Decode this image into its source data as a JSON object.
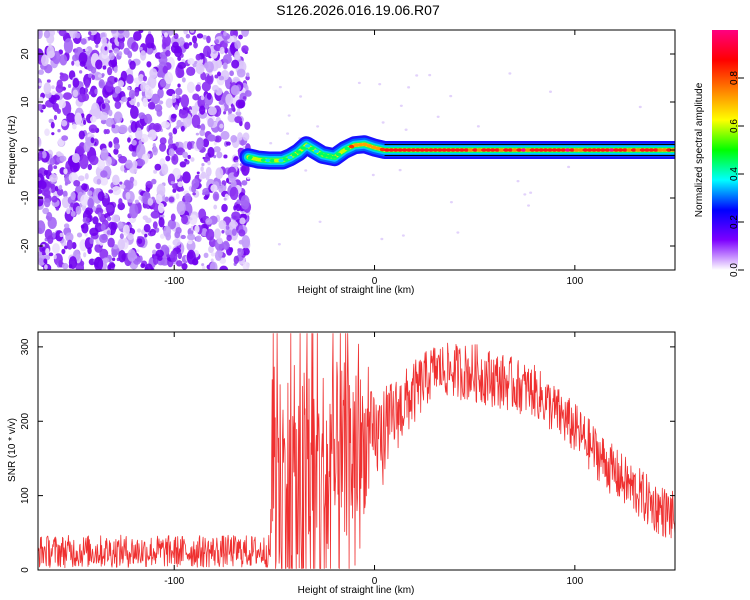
{
  "title": "S126.2026.016.19.06.R07",
  "chart_data": [
    {
      "type": "heatmap",
      "xlabel": "Height of straight line (km)",
      "ylabel": "Frequency (Hz)",
      "xlim": [
        -168,
        150
      ],
      "ylim": [
        -25,
        25
      ],
      "x_ticks": [
        -100,
        0,
        100
      ],
      "y_ticks": [
        -20,
        -10,
        0,
        10,
        20
      ],
      "colorbar": {
        "label": "Normalized spectral amplitude",
        "range": [
          0,
          1
        ],
        "ticks": [
          "0.0",
          "0.2",
          "0.4",
          "0.6",
          "0.8"
        ],
        "colors": [
          "#ffffff",
          "#7d00ff",
          "#0000ff",
          "#00ffff",
          "#00ff00",
          "#ffff00",
          "#ff8000",
          "#ff0000",
          "#ff0080"
        ]
      },
      "noise_region_x": [
        -168,
        -63
      ],
      "trace_center_hz": [
        [
          -63,
          -1.5
        ],
        [
          -58,
          -2
        ],
        [
          -52,
          -2.2
        ],
        [
          -46,
          -2.2
        ],
        [
          -42,
          -1.5
        ],
        [
          -38,
          -0.5
        ],
        [
          -34,
          1
        ],
        [
          -30,
          0
        ],
        [
          -26,
          -1
        ],
        [
          -20,
          -1.5
        ],
        [
          -15,
          0
        ],
        [
          -10,
          1
        ],
        [
          -5,
          1.2
        ],
        [
          0,
          0.5
        ],
        [
          5,
          0
        ],
        [
          20,
          0
        ],
        [
          60,
          0
        ],
        [
          100,
          0
        ],
        [
          150,
          0
        ]
      ]
    },
    {
      "type": "line",
      "xlabel": "Height of straight line (km)",
      "ylabel": "SNR (10 * v/v)",
      "xlim": [
        -168,
        150
      ],
      "ylim": [
        0,
        320
      ],
      "x_ticks": [
        -100,
        0,
        100
      ],
      "y_ticks": [
        0,
        100,
        200,
        300
      ],
      "series_color": "#ef3030",
      "envelope": [
        [
          -168,
          25,
          22
        ],
        [
          -52,
          25,
          22
        ],
        [
          -51,
          130,
          150
        ],
        [
          -40,
          95,
          180
        ],
        [
          -25,
          110,
          170
        ],
        [
          -10,
          160,
          120
        ],
        [
          0,
          175,
          60
        ],
        [
          30,
          270,
          35
        ],
        [
          50,
          265,
          40
        ],
        [
          80,
          240,
          35
        ],
        [
          100,
          190,
          35
        ],
        [
          120,
          130,
          35
        ],
        [
          140,
          85,
          35
        ],
        [
          150,
          70,
          35
        ]
      ]
    }
  ]
}
